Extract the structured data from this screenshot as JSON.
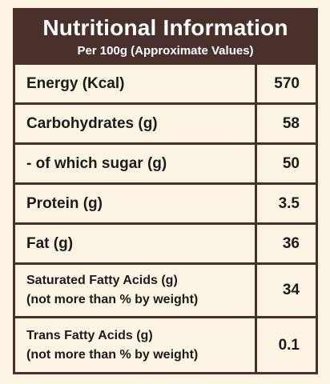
{
  "header": {
    "title": "Nutritional Information",
    "subtitle": "Per 100g (Approximate Values)"
  },
  "rows": [
    {
      "label": "Energy (Kcal)",
      "value": "570"
    },
    {
      "label": "Carbohydrates (g)",
      "value": "58"
    },
    {
      "label": "- of which sugar (g)",
      "value": "50"
    },
    {
      "label": "Protein (g)",
      "value": "3.5"
    },
    {
      "label": "Fat (g)",
      "value": "36"
    },
    {
      "label_line1": "Saturated Fatty Acids (g)",
      "label_line2": "(not more than % by weight)",
      "value": "34"
    },
    {
      "label_line1": "Trans Fatty Acids (g)",
      "label_line2": "(not more than % by weight)",
      "value": "0.1"
    }
  ],
  "colors": {
    "border": "#4a302b",
    "background": "#fbf4e3",
    "text": "#1b1b1b",
    "header_text": "#ffffff"
  }
}
